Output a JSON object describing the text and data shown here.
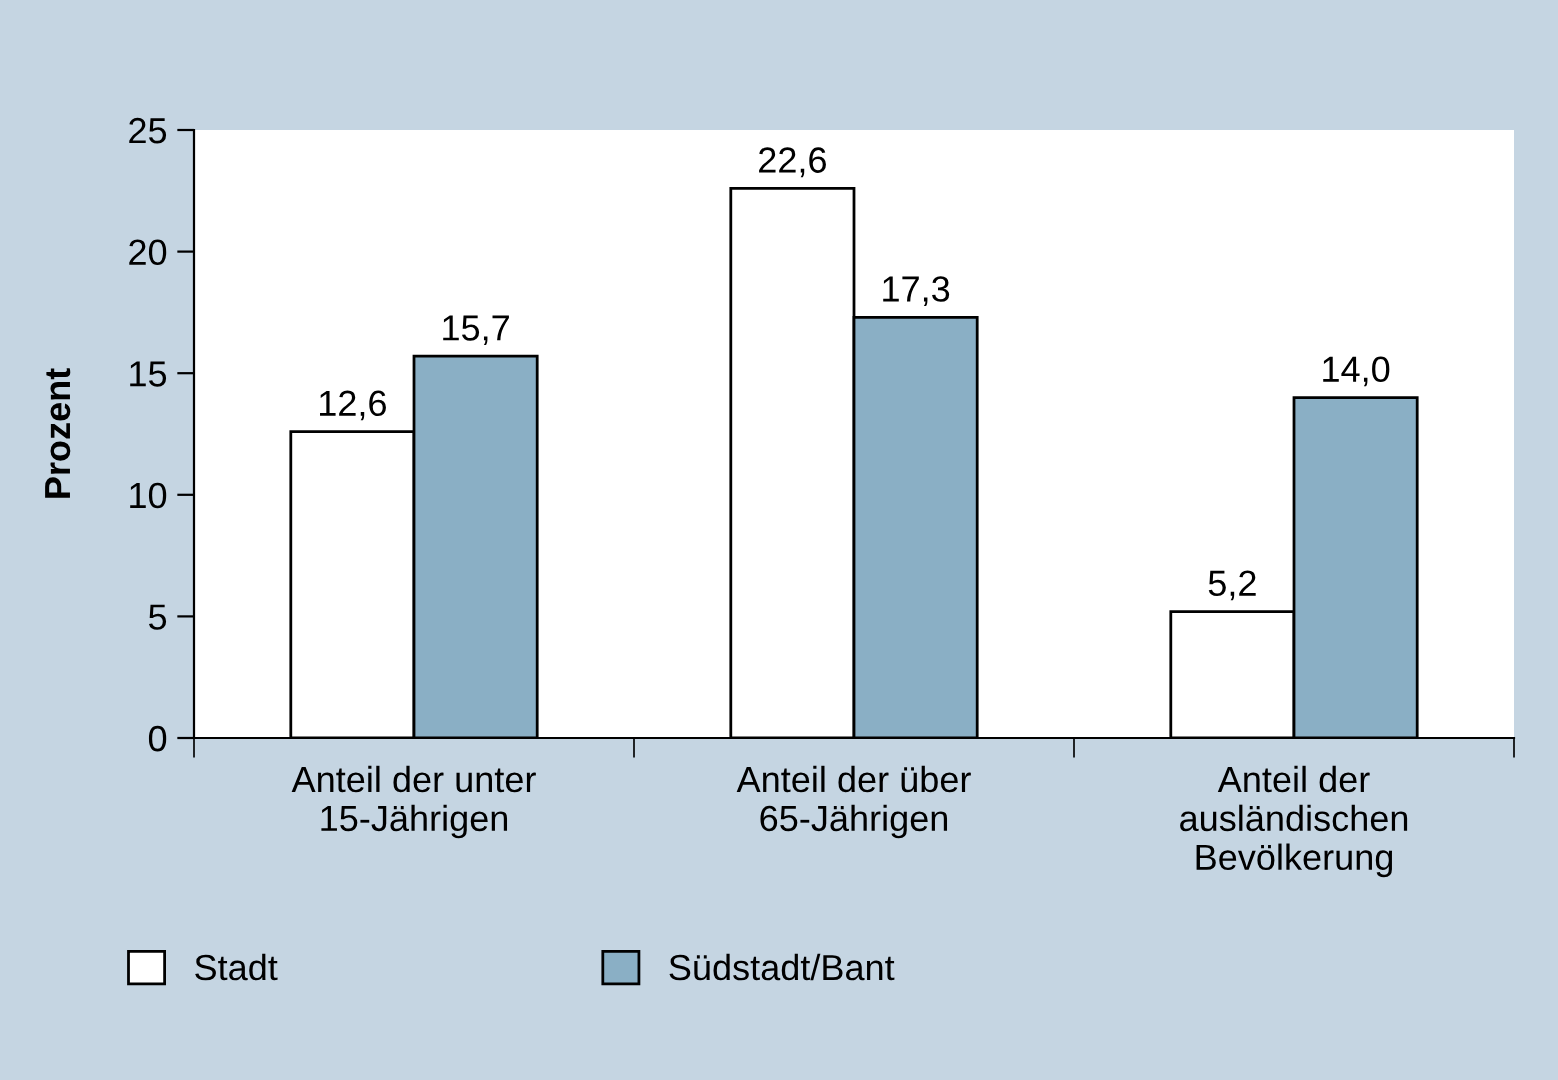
{
  "chart_data": {
    "type": "bar",
    "ylabel": "Prozent",
    "categories": [
      "Anteil der unter\n15-Jährigen",
      "Anteil der über\n65-Jährigen",
      "Anteil der\nausländischen\nBevölkerung"
    ],
    "series": [
      {
        "name": "Stadt",
        "color": "#ffffff",
        "values": [
          12.6,
          22.6,
          5.2
        ],
        "value_labels": [
          "12,6",
          "22,6",
          "5,2"
        ]
      },
      {
        "name": "Südstadt/Bant",
        "color": "#8aafc5",
        "values": [
          15.7,
          17.3,
          14.0
        ],
        "value_labels": [
          "15,7",
          "17,3",
          "14,0"
        ]
      }
    ],
    "ylim": [
      0,
      25
    ],
    "yticks": [
      0,
      5,
      10,
      15,
      20,
      25
    ],
    "grid": false,
    "legend": "bottom"
  }
}
